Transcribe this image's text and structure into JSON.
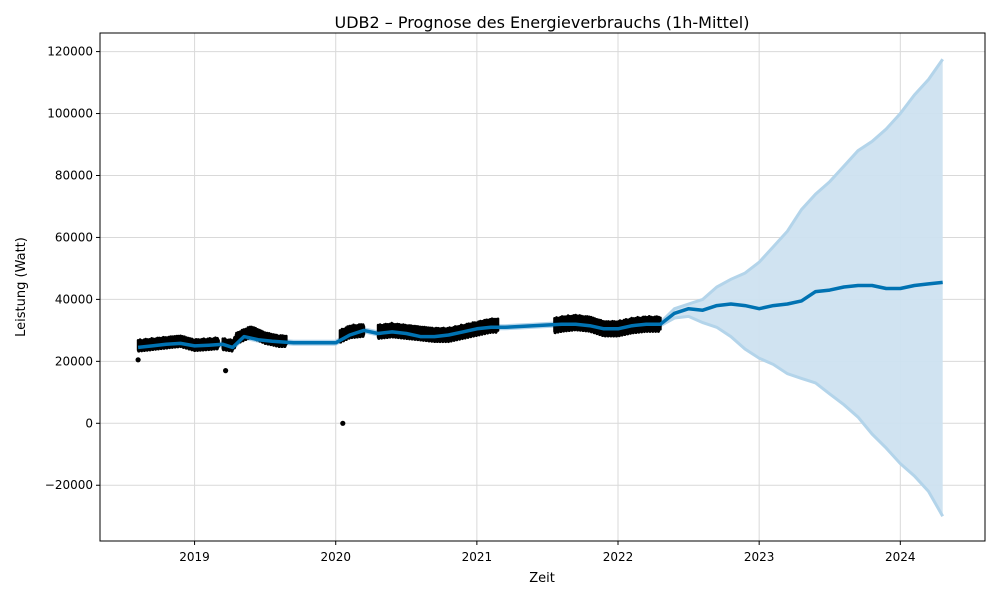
{
  "chart_data": {
    "type": "line",
    "title": "UDB2 – Prognose des Energieverbrauchs (1h-Mittel)",
    "xlabel": "Zeit",
    "ylabel": "Leistung (Watt)",
    "xlim": [
      2018.33,
      2024.6
    ],
    "ylim": [
      -38000,
      126000
    ],
    "x_ticks": [
      2019,
      2020,
      2021,
      2022,
      2023,
      2024
    ],
    "y_ticks": [
      -20000,
      0,
      20000,
      40000,
      60000,
      80000,
      100000,
      120000
    ],
    "y_tick_labels": [
      "−20000",
      "0",
      "20000",
      "40000",
      "60000",
      "80000",
      "100000",
      "120000"
    ],
    "grid": true,
    "colors": {
      "observed": "#000000",
      "forecast": "#0072B2",
      "interval_fill": "#cde2f0",
      "interval_edge": "#b3d4ea"
    },
    "observed_segments": [
      {
        "x": [
          2018.6,
          2018.7,
          2018.8,
          2018.9,
          2019.0,
          2019.1,
          2019.17
        ],
        "center": [
          25000,
          25500,
          26000,
          26500,
          25200,
          25500,
          25800
        ],
        "spread": 1800
      },
      {
        "x": [
          2019.2,
          2019.27,
          2019.3,
          2019.4,
          2019.5,
          2019.6,
          2019.65
        ],
        "center": [
          25500,
          25000,
          27500,
          29500,
          27500,
          26500,
          26500
        ],
        "spread": 1800
      },
      {
        "x": [
          2020.03,
          2020.1,
          2020.2
        ],
        "center": [
          28000,
          29500,
          30000
        ],
        "spread": 2000
      },
      {
        "x": [
          2020.3,
          2020.4,
          2020.5,
          2020.6,
          2020.7,
          2020.8,
          2020.9,
          2021.0,
          2021.1,
          2021.15
        ],
        "center": [
          29500,
          30000,
          29500,
          29000,
          28500,
          28500,
          29500,
          30500,
          31500,
          31500
        ],
        "spread": 2200
      },
      {
        "x": [
          2021.55,
          2021.6,
          2021.7,
          2021.8,
          2021.9,
          2022.0,
          2022.1,
          2022.2,
          2022.3
        ],
        "center": [
          31500,
          32000,
          32500,
          32000,
          30500,
          30500,
          31500,
          32000,
          32000
        ],
        "spread": 2400
      }
    ],
    "outliers": [
      {
        "x": 2018.6,
        "y": 20500
      },
      {
        "x": 2019.22,
        "y": 17000
      },
      {
        "x": 2020.05,
        "y": 0
      }
    ],
    "forecast": {
      "x": [
        2018.6,
        2018.7,
        2018.8,
        2018.9,
        2019.0,
        2019.1,
        2019.2,
        2019.27,
        2019.35,
        2019.45,
        2019.55,
        2019.7,
        2019.9,
        2020.0,
        2020.1,
        2020.2,
        2020.3,
        2020.4,
        2020.5,
        2020.6,
        2020.7,
        2020.8,
        2020.9,
        2021.0,
        2021.1,
        2021.2,
        2021.4,
        2021.6,
        2021.7,
        2021.8,
        2021.9,
        2022.0,
        2022.1,
        2022.2,
        2022.3,
        2022.4,
        2022.5,
        2022.6,
        2022.7,
        2022.8,
        2022.9,
        2023.0,
        2023.1,
        2023.2,
        2023.3,
        2023.4,
        2023.5,
        2023.6,
        2023.7,
        2023.8,
        2023.9,
        2024.0,
        2024.1,
        2024.2,
        2024.3
      ],
      "y": [
        24500,
        25000,
        25500,
        25800,
        25000,
        25200,
        25500,
        24500,
        28000,
        27000,
        26500,
        26000,
        26000,
        26000,
        28500,
        30000,
        29000,
        29500,
        29000,
        28000,
        28000,
        28500,
        29500,
        30500,
        31000,
        31000,
        31500,
        32000,
        32000,
        31500,
        30500,
        30500,
        31500,
        32000,
        32000,
        35500,
        37000,
        36500,
        38000,
        38500,
        38000,
        37000,
        38000,
        38500,
        39500,
        42500,
        43000,
        44000,
        44500,
        44500,
        43500,
        43500,
        44500,
        45000,
        45500
      ],
      "lower": [
        24000,
        24500,
        25000,
        25300,
        24500,
        24700,
        25000,
        24000,
        27500,
        26500,
        26000,
        25500,
        25500,
        25500,
        28000,
        29500,
        28500,
        29000,
        28500,
        27500,
        27500,
        28000,
        29000,
        30000,
        30500,
        30500,
        31000,
        31500,
        31500,
        31000,
        30000,
        30000,
        31000,
        31500,
        31500,
        34000,
        34500,
        32500,
        31000,
        28000,
        24000,
        21000,
        19000,
        16000,
        14500,
        13000,
        9500,
        6000,
        2000,
        -3500,
        -8000,
        -13000,
        -17000,
        -22000,
        -30000
      ],
      "upper": [
        25000,
        25500,
        26000,
        26300,
        25500,
        25700,
        26000,
        25000,
        28500,
        27500,
        27000,
        26500,
        26500,
        26500,
        29000,
        30500,
        29500,
        30000,
        29500,
        28500,
        28500,
        29000,
        30000,
        31000,
        31500,
        31500,
        32000,
        32500,
        32500,
        32000,
        31000,
        31000,
        32000,
        32500,
        32500,
        37000,
        38500,
        40000,
        44000,
        46500,
        48500,
        52000,
        57000,
        62000,
        69000,
        74000,
        78000,
        83000,
        88000,
        91000,
        95000,
        100000,
        106000,
        111000,
        117500
      ]
    }
  }
}
